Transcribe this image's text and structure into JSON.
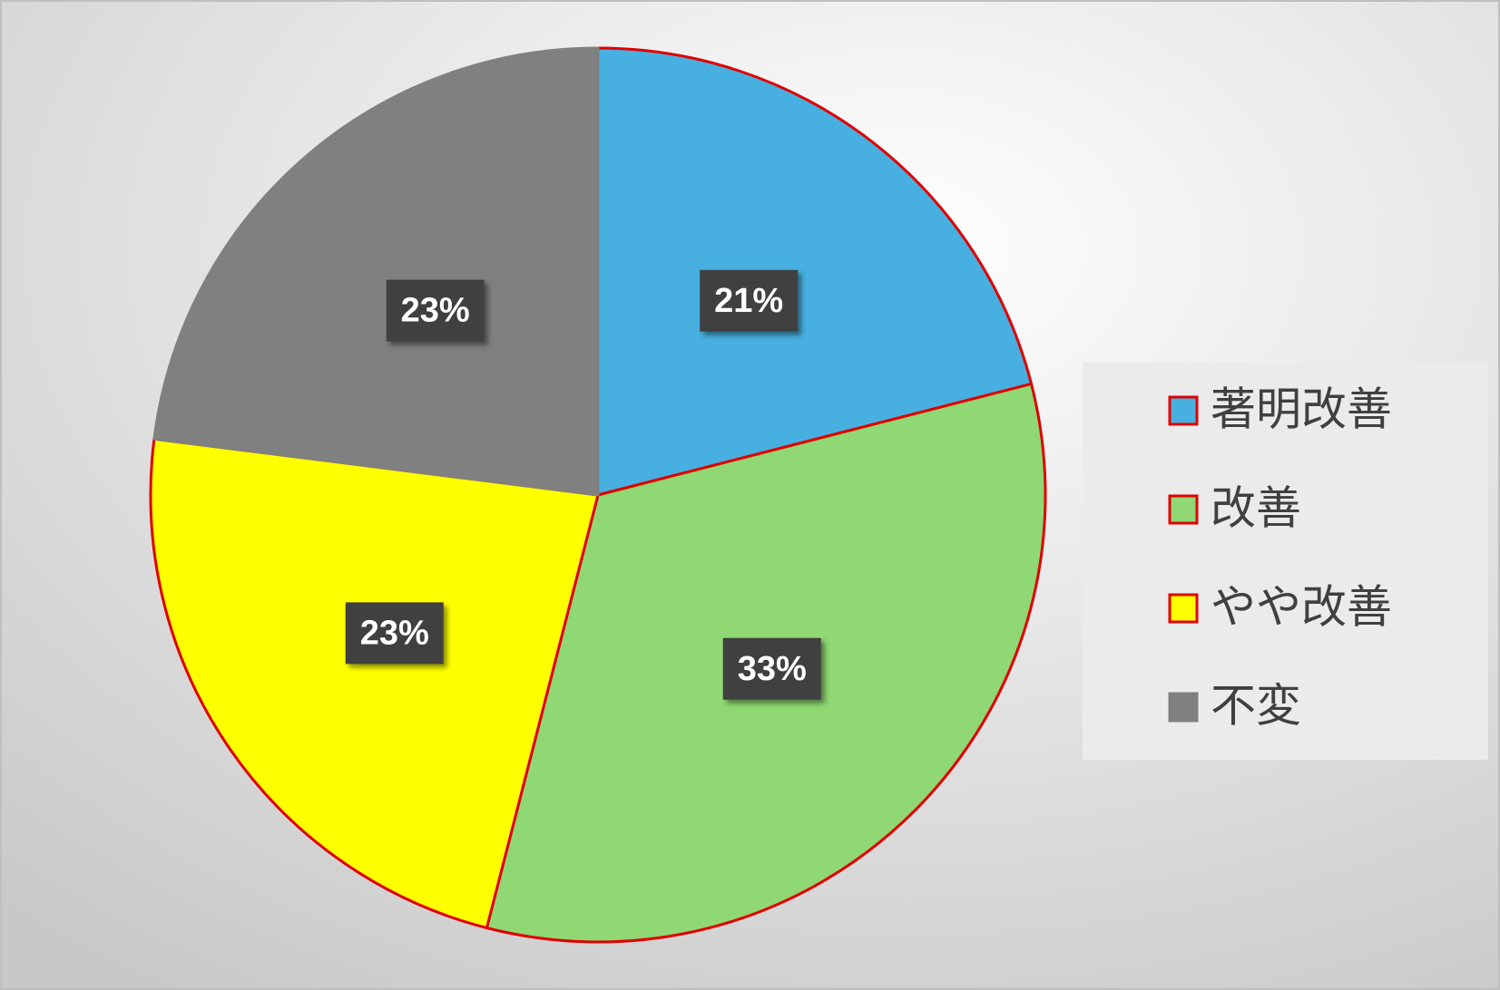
{
  "chart_data": {
    "type": "pie",
    "categories": [
      "著明改善",
      "改善",
      "やや改善",
      "不変"
    ],
    "values": [
      21,
      33,
      23,
      23
    ],
    "value_labels": [
      "21%",
      "33%",
      "23%",
      "23%"
    ],
    "colors": [
      "#47b0e0",
      "#8fd873",
      "#ffff00",
      "#808080"
    ],
    "edgecolors": [
      "#e00000",
      "#e00000",
      "#e00000",
      "#808080"
    ],
    "legend": "right"
  }
}
